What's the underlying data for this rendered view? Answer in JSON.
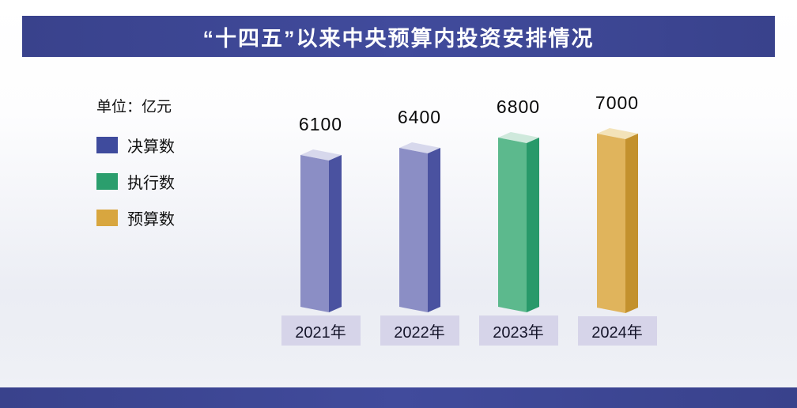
{
  "header": {
    "title": "“十四五”以来中央预算内投资安排情况"
  },
  "chart_data": {
    "type": "bar",
    "title": "“十四五”以来中央预算内投资安排情况",
    "unit_label": "单位：亿元",
    "categories": [
      "2021年",
      "2022年",
      "2023年",
      "2024年"
    ],
    "values": [
      6100,
      6400,
      6800,
      7000
    ],
    "series_by_bar": [
      "决算数",
      "决算数",
      "执行数",
      "预算数"
    ],
    "legend": [
      {
        "label": "决算数",
        "color": "#3f4b9d"
      },
      {
        "label": "执行数",
        "color": "#2b9e6d"
      },
      {
        "label": "预算数",
        "color": "#d8a63f"
      }
    ],
    "bar_colors": [
      {
        "left": "#8b8ec5",
        "right": "#4a52a0",
        "top": "#d7d8ec"
      },
      {
        "left": "#8b8ec5",
        "right": "#4a52a0",
        "top": "#d7d8ec"
      },
      {
        "left": "#5cb98d",
        "right": "#28996a",
        "top": "#cfe9dc"
      },
      {
        "left": "#e0b45c",
        "right": "#c3912d",
        "top": "#f3e3b9"
      }
    ],
    "ylim": [
      0,
      7000
    ],
    "xlabel": "",
    "ylabel": "亿元",
    "grid": false,
    "legend_position": "left"
  },
  "colors": {
    "banner": "#3d4794",
    "year_box_bg": "#d6d4e9"
  }
}
